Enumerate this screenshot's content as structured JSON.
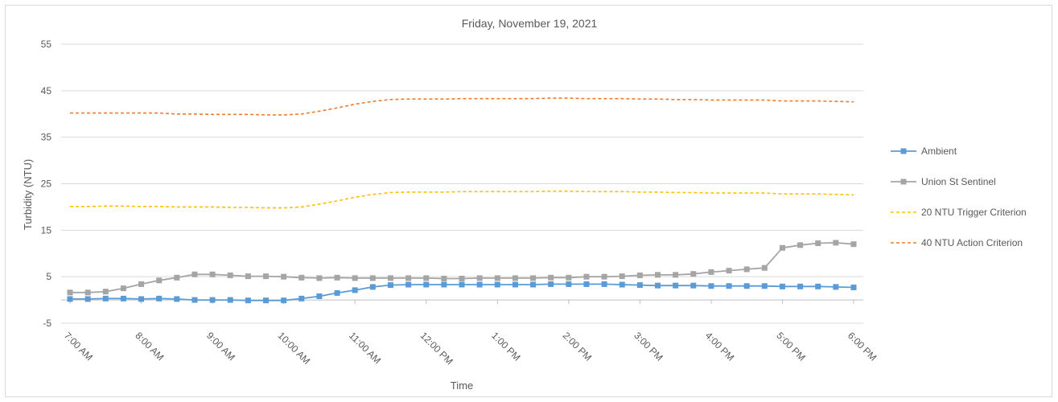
{
  "chart_data": {
    "type": "line",
    "title": "Friday, November 19, 2021",
    "xlabel": "Time",
    "ylabel": "Turbidity (NTU)",
    "ylim": [
      -5,
      55
    ],
    "yticks": [
      -5,
      5,
      15,
      25,
      35,
      45,
      55
    ],
    "grid": true,
    "legend_position": "right",
    "x_tick_labels": [
      "7:00 AM",
      "8:00 AM",
      "9:00 AM",
      "10:00 AM",
      "11:00 AM",
      "12:00 PM",
      "1:00 PM",
      "2:00 PM",
      "3:00 PM",
      "4:00 PM",
      "5:00 PM",
      "6:00 PM"
    ],
    "x": [
      "7:00",
      "7:15",
      "7:30",
      "7:45",
      "8:00",
      "8:15",
      "8:30",
      "8:45",
      "9:00",
      "9:15",
      "9:30",
      "9:45",
      "10:00",
      "10:15",
      "10:30",
      "10:45",
      "11:00",
      "11:15",
      "11:30",
      "11:45",
      "12:00",
      "12:15",
      "12:30",
      "12:45",
      "13:00",
      "13:15",
      "13:30",
      "13:45",
      "14:00",
      "14:15",
      "14:30",
      "14:45",
      "15:00",
      "15:15",
      "15:30",
      "15:45",
      "16:00",
      "16:15",
      "16:30",
      "16:45",
      "17:00",
      "17:15",
      "17:30",
      "17:45",
      "18:00"
    ],
    "series": [
      {
        "name": "Ambient",
        "color": "#5b9bd5",
        "style": "solid-square",
        "values": [
          0.2,
          0.2,
          0.3,
          0.3,
          0.2,
          0.3,
          0.2,
          0.0,
          0.0,
          0.0,
          -0.1,
          -0.1,
          -0.1,
          0.3,
          0.8,
          1.5,
          2.1,
          2.8,
          3.2,
          3.3,
          3.3,
          3.3,
          3.3,
          3.3,
          3.3,
          3.3,
          3.3,
          3.4,
          3.4,
          3.4,
          3.4,
          3.3,
          3.2,
          3.1,
          3.1,
          3.1,
          3.0,
          3.0,
          3.0,
          3.0,
          2.9,
          2.9,
          2.9,
          2.8,
          2.7
        ]
      },
      {
        "name": "Union St Sentinel",
        "color": "#a5a5a5",
        "style": "solid-square",
        "values": [
          1.6,
          1.6,
          1.8,
          2.5,
          3.4,
          4.2,
          4.8,
          5.5,
          5.5,
          5.3,
          5.1,
          5.1,
          5.0,
          4.8,
          4.7,
          4.8,
          4.7,
          4.7,
          4.7,
          4.7,
          4.7,
          4.6,
          4.6,
          4.7,
          4.7,
          4.7,
          4.7,
          4.8,
          4.8,
          5.0,
          5.0,
          5.1,
          5.3,
          5.4,
          5.4,
          5.6,
          6.0,
          6.3,
          6.6,
          6.9,
          11.2,
          11.8,
          12.2,
          12.3,
          12.0
        ]
      },
      {
        "name": "20 NTU Trigger Criterion",
        "color": "#ffc000",
        "style": "dashed",
        "values": [
          20.1,
          20.1,
          20.2,
          20.2,
          20.1,
          20.1,
          20.0,
          20.0,
          20.0,
          19.9,
          19.9,
          19.8,
          19.8,
          20.0,
          20.6,
          21.3,
          22.1,
          22.7,
          23.1,
          23.2,
          23.2,
          23.2,
          23.3,
          23.3,
          23.3,
          23.3,
          23.3,
          23.4,
          23.4,
          23.3,
          23.3,
          23.3,
          23.2,
          23.2,
          23.1,
          23.1,
          23.0,
          23.0,
          23.0,
          23.0,
          22.8,
          22.8,
          22.8,
          22.7,
          22.6
        ]
      },
      {
        "name": "40 NTU Action Criterion",
        "color": "#ed7d31",
        "style": "dashed",
        "values": [
          40.2,
          40.2,
          40.2,
          40.2,
          40.2,
          40.2,
          40.0,
          40.0,
          39.9,
          39.9,
          39.9,
          39.8,
          39.8,
          40.0,
          40.6,
          41.3,
          42.1,
          42.7,
          43.1,
          43.2,
          43.2,
          43.2,
          43.3,
          43.3,
          43.3,
          43.3,
          43.3,
          43.4,
          43.4,
          43.3,
          43.3,
          43.3,
          43.2,
          43.2,
          43.1,
          43.1,
          43.0,
          43.0,
          43.0,
          43.0,
          42.8,
          42.8,
          42.8,
          42.7,
          42.6
        ]
      }
    ]
  }
}
